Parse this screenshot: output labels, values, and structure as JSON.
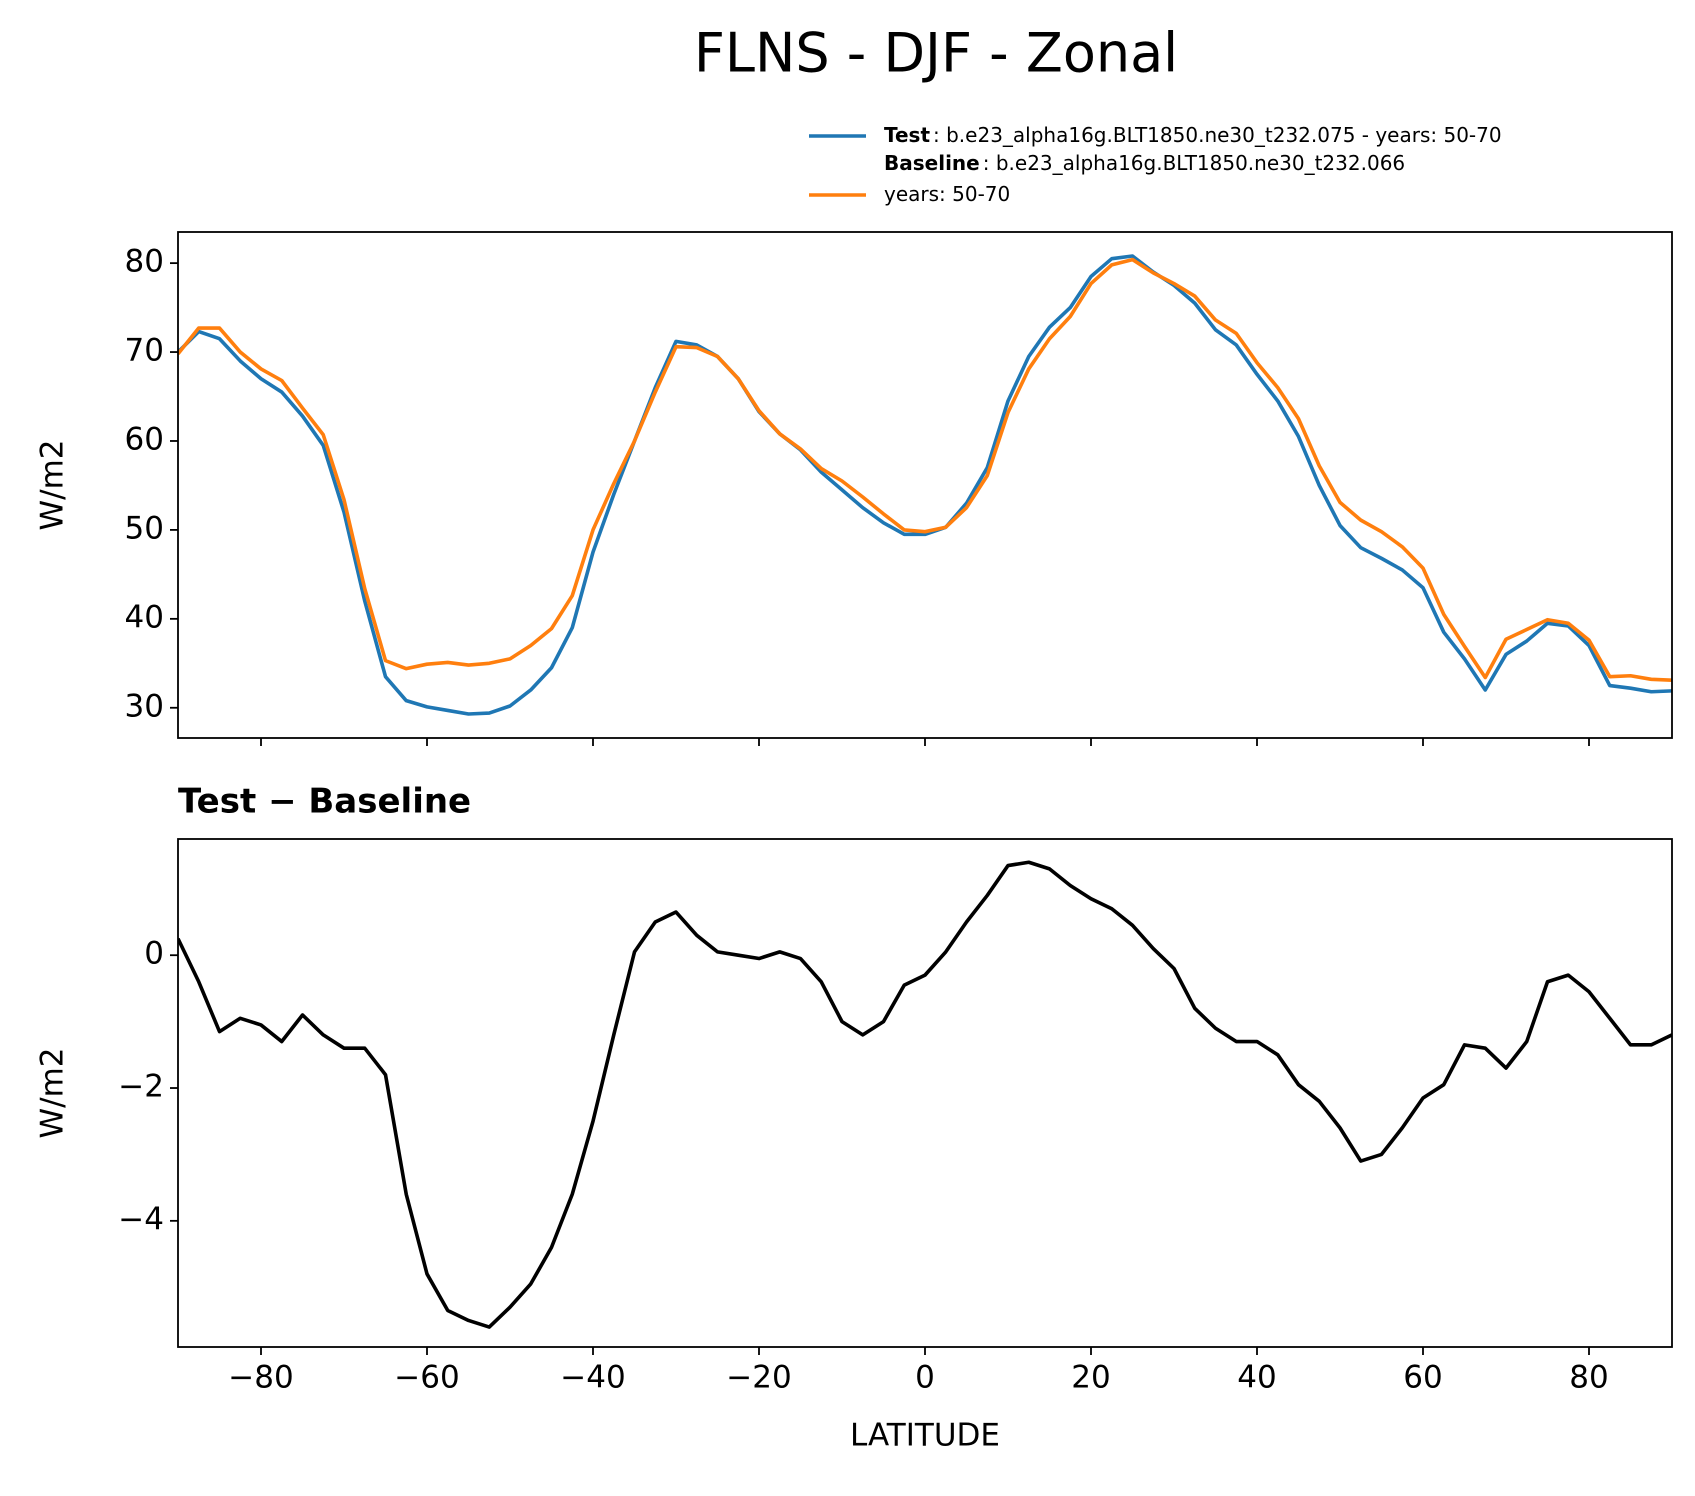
{
  "title": "FLNS - DJF - Zonal",
  "chart_data": [
    {
      "type": "line",
      "x": [
        -90,
        -87.5,
        -85,
        -82.5,
        -80,
        -77.5,
        -75,
        -72.5,
        -70,
        -67.5,
        -65,
        -62.5,
        -60,
        -57.5,
        -55,
        -52.5,
        -50,
        -47.5,
        -45,
        -42.5,
        -40,
        -37.5,
        -35,
        -32.5,
        -30,
        -27.5,
        -25,
        -22.5,
        -20,
        -17.5,
        -15,
        -12.5,
        -10,
        -7.5,
        -5,
        -2.5,
        0,
        2.5,
        5,
        7.5,
        10,
        12.5,
        15,
        17.5,
        20,
        22.5,
        25,
        27.5,
        30,
        32.5,
        35,
        37.5,
        40,
        42.5,
        45,
        47.5,
        50,
        52.5,
        55,
        57.5,
        60,
        62.5,
        65,
        67.5,
        70,
        72.5,
        75,
        77.5,
        80,
        82.5,
        85,
        87.5,
        90
      ],
      "series": [
        {
          "name": "Test",
          "description": [
            ": b.e23_alpha16g.BLT1850.ne30_t232.075 - years: 50-70"
          ],
          "color": "#1f77b4",
          "values": [
            70,
            72.3,
            71.5,
            69,
            67,
            65.5,
            62.8,
            59.5,
            52,
            42,
            33.5,
            30.8,
            30.1,
            29.7,
            29.3,
            29.4,
            30.2,
            32,
            34.5,
            39,
            47.5,
            54,
            60,
            66,
            71.2,
            70.8,
            69.5,
            67,
            63.3,
            60.8,
            59,
            56.5,
            54.5,
            52.5,
            50.8,
            49.5,
            49.5,
            50.3,
            53,
            57,
            64.5,
            69.5,
            72.8,
            75,
            78.5,
            80.5,
            80.8,
            79,
            77.5,
            75.5,
            72.5,
            70.8,
            67.5,
            64.5,
            60.5,
            55,
            50.5,
            48,
            46.8,
            45.5,
            43.5,
            38.5,
            35.5,
            32,
            36,
            37.5,
            39.5,
            39.2,
            37,
            32.5,
            32.2,
            31.8,
            31.9
          ]
        },
        {
          "name": "Baseline",
          "description": [
            ": b.e23_alpha16g.BLT1850.ne30_t232.066",
            "years: 50-70"
          ],
          "color": "#ff7f0e",
          "values": [
            69.8,
            72.7,
            72.7,
            70.0,
            68.1,
            66.8,
            63.7,
            60.7,
            53.4,
            43.4,
            35.3,
            34.4,
            34.9,
            35.1,
            34.8,
            35.0,
            35.5,
            37.0,
            38.9,
            42.6,
            50.0,
            55.2,
            60.0,
            65.5,
            70.6,
            70.5,
            69.5,
            67,
            63.4,
            60.8,
            59.1,
            56.9,
            55.5,
            53.7,
            51.8,
            50.0,
            49.8,
            50.3,
            52.5,
            56.1,
            63.2,
            68.1,
            71.5,
            74.0,
            77.7,
            79.8,
            80.4,
            78.9,
            77.7,
            76.3,
            73.6,
            72.1,
            68.8,
            66.0,
            62.5,
            57.2,
            53.1,
            51.1,
            49.8,
            48.1,
            45.7,
            40.5,
            36.9,
            33.4,
            37.7,
            38.8,
            39.9,
            39.5,
            37.6,
            33.5,
            33.6,
            33.2,
            33.1
          ]
        }
      ],
      "ylabel": "W/m2",
      "xlim": [
        -90,
        90
      ],
      "ylim": [
        26.6,
        83.5
      ],
      "xticks": [
        -80,
        -60,
        -40,
        -20,
        0,
        20,
        40,
        60,
        80
      ],
      "yticks": [
        30,
        40,
        50,
        60,
        70,
        80
      ],
      "legend": "upper right"
    },
    {
      "type": "line",
      "title": "Test − Baseline",
      "x": [
        -90,
        -87.5,
        -85,
        -82.5,
        -80,
        -77.5,
        -75,
        -72.5,
        -70,
        -67.5,
        -65,
        -62.5,
        -60,
        -57.5,
        -55,
        -52.5,
        -50,
        -47.5,
        -45,
        -42.5,
        -40,
        -37.5,
        -35,
        -32.5,
        -30,
        -27.5,
        -25,
        -22.5,
        -20,
        -17.5,
        -15,
        -12.5,
        -10,
        -7.5,
        -5,
        -2.5,
        0,
        2.5,
        5,
        7.5,
        10,
        12.5,
        15,
        17.5,
        20,
        22.5,
        25,
        27.5,
        30,
        32.5,
        35,
        37.5,
        40,
        42.5,
        45,
        47.5,
        50,
        52.5,
        55,
        57.5,
        60,
        62.5,
        65,
        67.5,
        70,
        72.5,
        75,
        77.5,
        80,
        82.5,
        85,
        87.5,
        90
      ],
      "color": "#000000",
      "values": [
        0.25,
        -0.4,
        -1.15,
        -0.95,
        -1.05,
        -1.3,
        -0.9,
        -1.2,
        -1.4,
        -1.4,
        -1.8,
        -3.6,
        -4.8,
        -5.35,
        -5.5,
        -5.6,
        -5.3,
        -4.95,
        -4.4,
        -3.6,
        -2.5,
        -1.2,
        0.05,
        0.5,
        0.65,
        0.3,
        0.05,
        0.0,
        -0.05,
        0.05,
        -0.05,
        -0.4,
        -1.0,
        -1.2,
        -1.0,
        -0.45,
        -0.3,
        0.05,
        0.5,
        0.9,
        1.35,
        1.4,
        1.3,
        1.05,
        0.85,
        0.7,
        0.45,
        0.1,
        -0.2,
        -0.8,
        -1.1,
        -1.3,
        -1.3,
        -1.5,
        -1.95,
        -2.2,
        -2.6,
        -3.1,
        -3.0,
        -2.6,
        -2.15,
        -1.95,
        -1.35,
        -1.4,
        -1.7,
        -1.3,
        -0.4,
        -0.3,
        -0.55,
        -0.95,
        -1.35,
        -1.35,
        -1.2
      ],
      "xlabel": "LATITUDE",
      "ylabel": "W/m2",
      "xlim": [
        -90,
        90
      ],
      "ylim": [
        -5.9,
        1.75
      ],
      "xticks": [
        {
          "value": -80,
          "label": "−80"
        },
        {
          "value": -60,
          "label": "−60"
        },
        {
          "value": -40,
          "label": "−40"
        },
        {
          "value": -20,
          "label": "−20"
        },
        0,
        20,
        40,
        60,
        80
      ],
      "yticks": [
        {
          "value": -4,
          "label": "−4"
        },
        {
          "value": -2,
          "label": "−2"
        },
        0
      ]
    }
  ]
}
